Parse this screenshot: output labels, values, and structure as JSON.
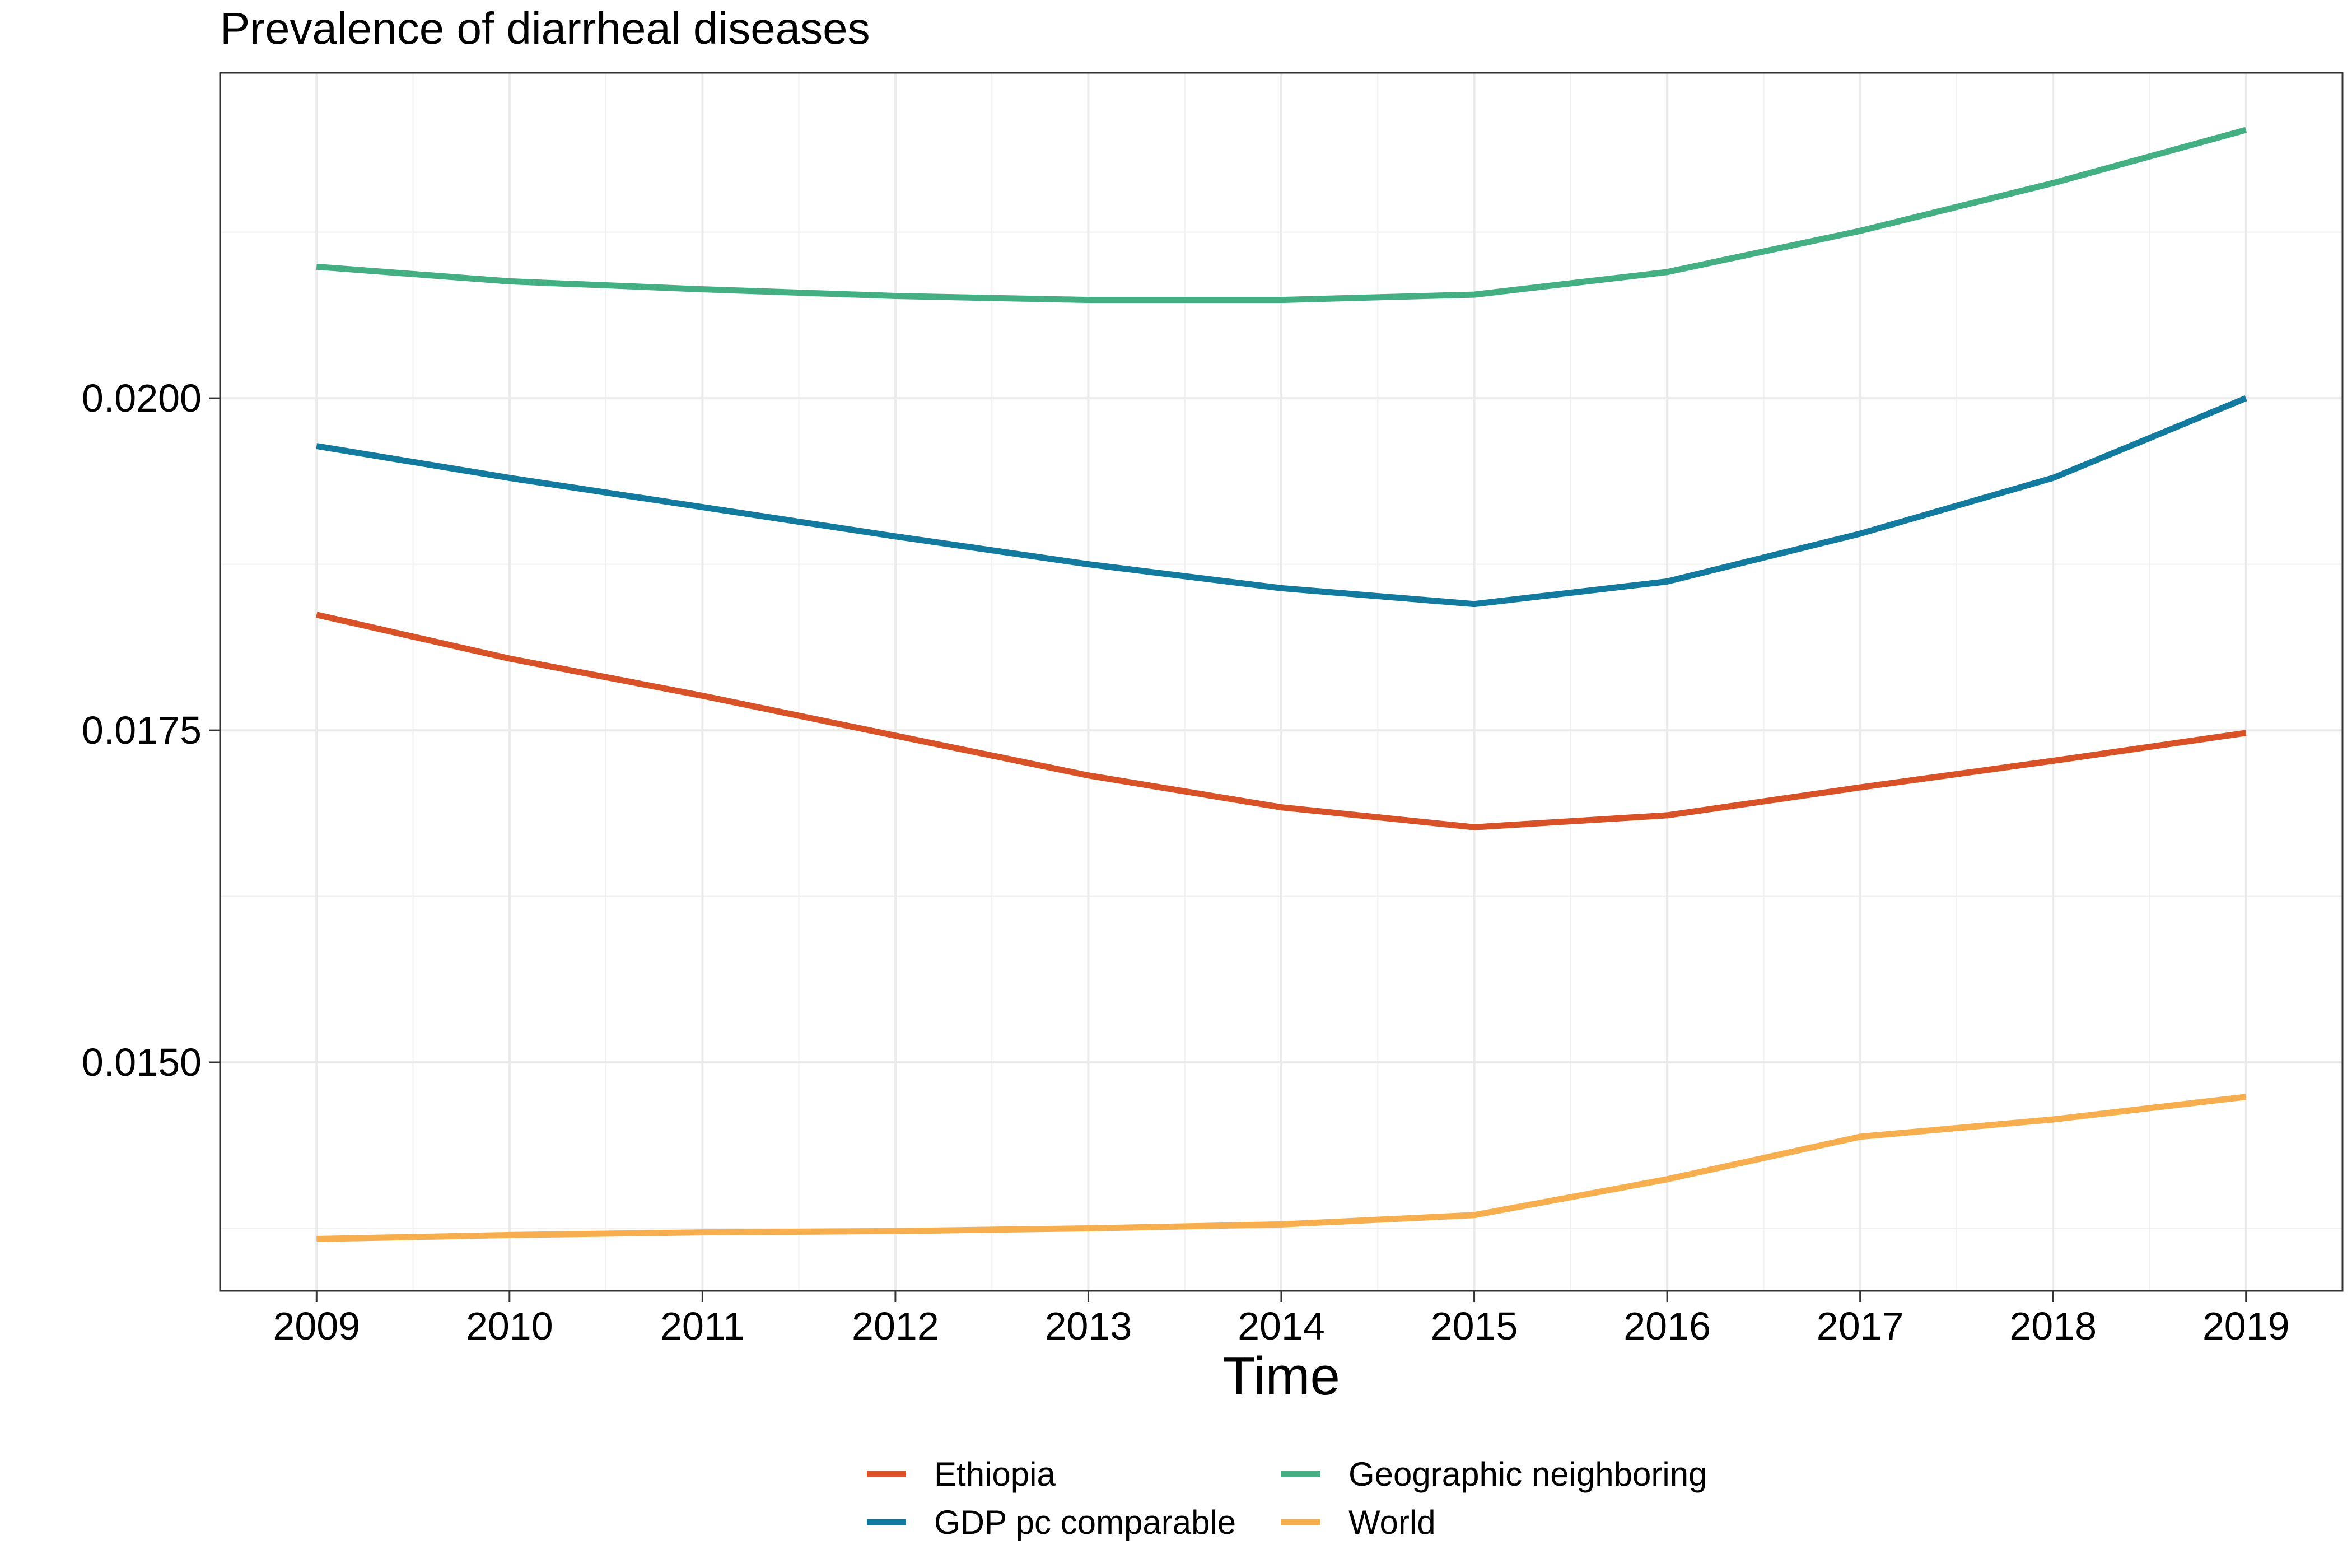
{
  "chart_data": {
    "type": "line",
    "title": "Prevalence of diarrheal diseases",
    "xlabel": "Time",
    "ylabel": "",
    "x": [
      2009,
      2010,
      2011,
      2012,
      2013,
      2014,
      2015,
      2016,
      2017,
      2018,
      2019
    ],
    "x_tick_labels": [
      "2009",
      "2010",
      "2011",
      "2012",
      "2013",
      "2014",
      "2015",
      "2016",
      "2017",
      "2018",
      "2019"
    ],
    "xlim": [
      2008.5,
      2019.5
    ],
    "ylim": [
      0.01328,
      0.02245
    ],
    "y_ticks": [
      0.015,
      0.0175,
      0.02
    ],
    "y_tick_labels": [
      "0.0150",
      "0.0175",
      "0.0200"
    ],
    "y_minor_ticks": [
      0.01375,
      0.01625,
      0.01875,
      0.02125
    ],
    "grid": true,
    "legend_position": "bottom",
    "series": [
      {
        "name": "Ethiopia",
        "color": "#D95227",
        "values": [
          0.01837,
          0.01804,
          0.01776,
          0.01746,
          0.01716,
          0.01692,
          0.01677,
          0.01686,
          0.01707,
          0.01727,
          0.01748
        ]
      },
      {
        "name": "GDP pc comparable",
        "color": "#117A9E",
        "values": [
          0.01964,
          0.0194,
          0.01918,
          0.01896,
          0.01875,
          0.01857,
          0.01845,
          0.01862,
          0.01898,
          0.0194,
          0.02
        ]
      },
      {
        "name": "Geographic neighboring",
        "color": "#43AF83",
        "values": [
          0.02099,
          0.02088,
          0.02082,
          0.02077,
          0.02074,
          0.02074,
          0.02078,
          0.02095,
          0.02126,
          0.02162,
          0.02202
        ]
      },
      {
        "name": "World",
        "color": "#F7AE4F",
        "values": [
          0.01367,
          0.0137,
          0.01372,
          0.01373,
          0.01375,
          0.01378,
          0.01385,
          0.01412,
          0.01444,
          0.01457,
          0.01474
        ]
      }
    ]
  }
}
